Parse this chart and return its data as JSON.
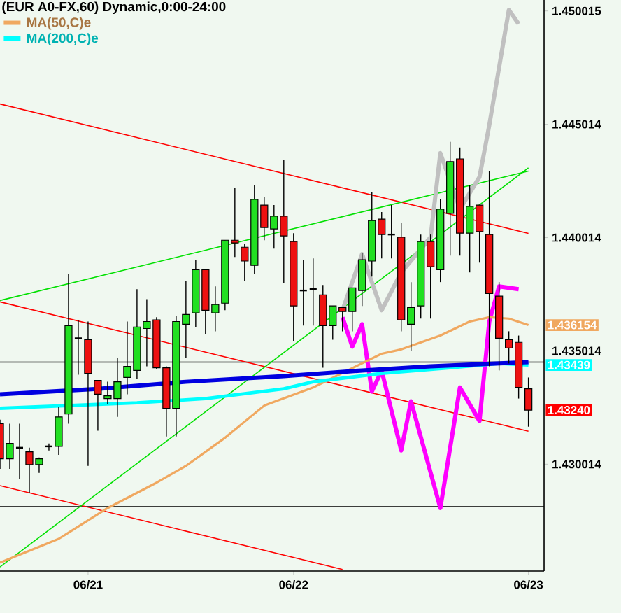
{
  "chart_data": {
    "type": "candlestick",
    "title": "(EUR A0-FX,60) Dynamic,0:00-24:00",
    "categories": [
      null,
      null,
      null,
      null,
      null,
      null,
      null,
      null,
      null,
      "06/21",
      null,
      null,
      null,
      null,
      null,
      null,
      null,
      null,
      null,
      null,
      null,
      null,
      null,
      null,
      null,
      null,
      null,
      null,
      null,
      null,
      "06/22",
      null,
      null,
      null,
      null,
      null,
      null,
      null,
      null,
      null,
      null,
      null,
      null,
      null,
      null,
      null,
      null,
      null,
      null,
      null,
      null,
      null,
      null,
      null,
      "06/23"
    ],
    "ohlc": [
      [
        1.4318,
        1.43198,
        1.42981,
        1.43025
      ],
      [
        1.43025,
        1.4318,
        1.42981,
        1.43093
      ],
      [
        1.43074,
        1.4318,
        1.42938,
        1.43074
      ],
      [
        1.43056,
        1.43074,
        1.42876,
        1.43
      ],
      [
        1.43,
        1.43031,
        1.42963,
        1.43025
      ],
      [
        1.4308,
        1.43093,
        1.43062,
        1.4308
      ],
      [
        1.4308,
        1.43254,
        1.43043,
        1.4321
      ],
      [
        1.43223,
        1.43842,
        1.4318,
        1.43613
      ],
      [
        1.43557,
        1.43638,
        1.43396,
        1.43557
      ],
      [
        1.43551,
        1.43631,
        1.42994,
        1.43402
      ],
      [
        1.43371,
        1.43371,
        1.43149,
        1.4331
      ],
      [
        1.43291,
        1.43365,
        1.43266,
        1.43303
      ],
      [
        1.43291,
        1.4347,
        1.4321,
        1.43365
      ],
      [
        1.43384,
        1.43631,
        1.4331,
        1.43433
      ],
      [
        1.43415,
        1.43774,
        1.43378,
        1.43607
      ],
      [
        1.436,
        1.4373,
        1.43433,
        1.43631
      ],
      [
        1.43638,
        1.4365,
        1.43421,
        1.43427
      ],
      [
        1.43427,
        1.43433,
        1.43124,
        1.43248
      ],
      [
        1.43248,
        1.43656,
        1.43124,
        1.43631
      ],
      [
        1.43619,
        1.43811,
        1.4347,
        1.43662
      ],
      [
        1.43669,
        1.43904,
        1.43607,
        1.4386
      ],
      [
        1.4386,
        1.4386,
        1.43576,
        1.43681
      ],
      [
        1.43669,
        1.43786,
        1.43588,
        1.43706
      ],
      [
        1.43712,
        1.4399,
        1.43681,
        1.4399
      ],
      [
        1.4399,
        1.44219,
        1.43916,
        1.43978
      ],
      [
        1.43959,
        1.43972,
        1.43811,
        1.43898
      ],
      [
        1.43879,
        1.44232,
        1.43842,
        1.4417
      ],
      [
        1.44145,
        1.44182,
        1.4399,
        1.44046
      ],
      [
        1.4404,
        1.44145,
        1.43953,
        1.44096
      ],
      [
        1.44096,
        1.44343,
        1.43799,
        1.44009
      ],
      [
        1.43984,
        1.44021,
        1.43545,
        1.437
      ],
      [
        1.43768,
        1.43904,
        1.43613,
        1.43768
      ],
      [
        1.43774,
        1.4391,
        1.43613,
        1.43774
      ],
      [
        1.43749,
        1.43792,
        1.43427,
        1.43613
      ],
      [
        1.43613,
        1.437,
        1.43551,
        1.437
      ],
      [
        1.43693,
        1.43693,
        1.43588,
        1.43675
      ],
      [
        1.43675,
        1.4378,
        1.43588,
        1.4378
      ],
      [
        1.43768,
        1.43935,
        1.437,
        1.43904
      ],
      [
        1.43898,
        1.44201,
        1.43829,
        1.44077
      ],
      [
        1.44083,
        1.44114,
        1.4391,
        1.44015
      ],
      [
        1.44015,
        1.44145,
        1.4391,
        1.44015
      ],
      [
        1.44003,
        1.44065,
        1.43588,
        1.43638
      ],
      [
        1.43619,
        1.43805,
        1.43501,
        1.43693
      ],
      [
        1.437,
        1.44015,
        1.43644,
        1.43984
      ],
      [
        1.43984,
        1.44015,
        1.43644,
        1.43873
      ],
      [
        1.4386,
        1.4417,
        1.43805,
        1.44127
      ],
      [
        1.44108,
        1.44424,
        1.43922,
        1.44337
      ],
      [
        1.44349,
        1.44399,
        1.43922,
        1.44021
      ],
      [
        1.44021,
        1.44232,
        1.43848,
        1.44139
      ],
      [
        1.44145,
        1.44145,
        1.43891,
        1.44028
      ],
      [
        1.44015,
        1.44294,
        1.43433,
        1.43755
      ],
      [
        1.43743,
        1.43805,
        1.43415,
        1.43557
      ],
      [
        1.43551,
        1.43588,
        1.43446,
        1.43514
      ],
      [
        1.43539,
        1.43569,
        1.43291,
        1.4334
      ],
      [
        1.43334,
        1.43384,
        1.43167,
        1.4324
      ]
    ],
    "ylim": [
      1.4253,
      1.4505
    ],
    "yticks": [
      1.430014,
      1.435014,
      1.440014,
      1.445014,
      1.450015
    ],
    "series": [
      {
        "type": "line",
        "color": "#ff0000",
        "values": [
          1.44591,
          null,
          null,
          null,
          null,
          null,
          null,
          null,
          null,
          null,
          null,
          null,
          null,
          null,
          null,
          null,
          null,
          null,
          null,
          null,
          null,
          null,
          null,
          null,
          null,
          null,
          null,
          null,
          null,
          null,
          null,
          null,
          null,
          null,
          null,
          null,
          null,
          null,
          null,
          null,
          null,
          null,
          null,
          null,
          null,
          null,
          null,
          null,
          null,
          null,
          null,
          null,
          null,
          null,
          1.4402
        ]
      },
      {
        "type": "line",
        "color": "#ff0000",
        "values": [
          1.43718,
          null,
          null,
          null,
          null,
          null,
          null,
          null,
          null,
          null,
          null,
          null,
          null,
          null,
          null,
          null,
          null,
          null,
          null,
          null,
          null,
          null,
          null,
          null,
          null,
          null,
          null,
          null,
          null,
          null,
          null,
          null,
          null,
          null,
          null,
          null,
          null,
          null,
          null,
          null,
          null,
          null,
          null,
          null,
          null,
          null,
          null,
          null,
          null,
          null,
          null,
          null,
          null,
          null,
          1.43147
        ]
      },
      {
        "type": "line",
        "color": "#ff0000",
        "values": [
          1.42907,
          null,
          null,
          null,
          null,
          null,
          null,
          null,
          null,
          null,
          null,
          null,
          null,
          null,
          null,
          null,
          null,
          null,
          null,
          null,
          null,
          null,
          null,
          null,
          null,
          null,
          null,
          null,
          null,
          null,
          null,
          null,
          null,
          null,
          null,
          1.42537,
          null,
          null,
          null,
          null,
          null,
          null,
          null,
          null,
          null,
          null,
          null,
          null,
          null,
          null,
          null,
          null,
          null,
          null,
          null
        ]
      },
      {
        "type": "line",
        "color": "#00e000",
        "values": [
          1.43724,
          null,
          null,
          null,
          null,
          null,
          null,
          null,
          null,
          null,
          null,
          null,
          null,
          null,
          null,
          null,
          null,
          null,
          null,
          null,
          null,
          null,
          null,
          null,
          null,
          null,
          null,
          null,
          null,
          null,
          null,
          null,
          null,
          null,
          null,
          null,
          null,
          null,
          null,
          null,
          null,
          null,
          null,
          null,
          null,
          null,
          null,
          null,
          null,
          null,
          null,
          null,
          null,
          null,
          1.44295
        ]
      },
      {
        "type": "line",
        "color": "#00e000",
        "values": [
          1.42548,
          null,
          null,
          null,
          null,
          null,
          null,
          null,
          null,
          null,
          null,
          null,
          null,
          null,
          null,
          null,
          null,
          null,
          null,
          null,
          null,
          null,
          null,
          null,
          null,
          null,
          null,
          null,
          null,
          null,
          null,
          null,
          null,
          null,
          null,
          null,
          null,
          null,
          null,
          null,
          null,
          null,
          null,
          null,
          null,
          null,
          null,
          null,
          null,
          null,
          null,
          null,
          null,
          null,
          1.44309
        ]
      },
      {
        "type": "line",
        "color": "#c0c0c0",
        "values": [
          null,
          null,
          null,
          null,
          null,
          null,
          null,
          null,
          null,
          null,
          null,
          null,
          null,
          null,
          null,
          null,
          null,
          null,
          null,
          null,
          null,
          null,
          null,
          null,
          null,
          null,
          null,
          null,
          null,
          null,
          null,
          null,
          null,
          null,
          null,
          1.43681,
          null,
          1.43929,
          null,
          1.43681,
          null,
          1.43848,
          null,
          null,
          1.44003,
          1.44374,
          null,
          1.44127,
          null,
          1.44269,
          1.44498,
          null,
          1.45006,
          1.44944,
          null
        ]
      },
      {
        "type": "line",
        "color": "#ff00ff",
        "values": [
          null,
          null,
          null,
          null,
          null,
          null,
          null,
          null,
          null,
          null,
          null,
          null,
          null,
          null,
          null,
          null,
          null,
          null,
          null,
          null,
          null,
          null,
          null,
          null,
          null,
          null,
          null,
          null,
          null,
          null,
          null,
          null,
          null,
          null,
          null,
          1.4365,
          1.4352,
          1.43619,
          1.43322,
          1.43415,
          null,
          1.43062,
          1.43279,
          null,
          null,
          1.42808,
          null,
          1.4334,
          null,
          1.43192,
          1.43631,
          1.43786,
          null,
          1.43774,
          null
        ]
      },
      {
        "type": "line",
        "name": "MA(50,C)e",
        "color": "#f0a860",
        "values": [
          1.42567,
          null,
          null,
          null,
          null,
          null,
          1.42672,
          null,
          null,
          null,
          null,
          1.42808,
          null,
          null,
          null,
          null,
          1.4292,
          null,
          null,
          1.42994,
          null,
          null,
          null,
          1.43118,
          null,
          null,
          null,
          1.4326,
          null,
          null,
          null,
          null,
          1.4334,
          null,
          null,
          null,
          null,
          null,
          null,
          1.43489,
          null,
          1.43508,
          null,
          null,
          null,
          1.43569,
          null,
          null,
          1.43631,
          null,
          1.4365,
          null,
          1.43644,
          null,
          1.436154
        ]
      },
      {
        "type": "line",
        "name": "MA(200,C)e",
        "color": "#00ffff",
        "values": [
          1.43248,
          null,
          null,
          null,
          null,
          null,
          null,
          null,
          null,
          null,
          null,
          null,
          null,
          null,
          1.43272,
          null,
          null,
          null,
          null,
          null,
          null,
          1.43291,
          null,
          null,
          null,
          null,
          null,
          null,
          null,
          1.43334,
          null,
          null,
          1.43365,
          null,
          null,
          null,
          null,
          null,
          null,
          1.43402,
          null,
          null,
          null,
          null,
          null,
          null,
          1.43427,
          null,
          null,
          null,
          null,
          1.43446,
          null,
          null,
          1.43439
        ]
      },
      {
        "type": "line",
        "color": "#0000e0",
        "values": [
          1.4331,
          null,
          null,
          null,
          null,
          null,
          null,
          null,
          null,
          null,
          1.43334,
          null,
          null,
          null,
          null,
          null,
          null,
          null,
          null,
          1.43365,
          null,
          null,
          null,
          null,
          null,
          null,
          null,
          null,
          null,
          1.4339,
          null,
          null,
          null,
          null,
          null,
          null,
          null,
          1.43415,
          null,
          null,
          null,
          null,
          null,
          null,
          1.43433,
          null,
          null,
          null,
          null,
          null,
          null,
          null,
          null,
          null,
          1.43452
        ]
      }
    ],
    "ref_lines": [
      {
        "axis": "y",
        "value": 1.43452,
        "color": "#000000"
      },
      {
        "axis": "y",
        "value": 1.42814,
        "color": "#000000"
      }
    ],
    "annotations": [
      {
        "text": "1.436154",
        "x": "06/23",
        "y": 1.436154
      },
      {
        "text": "1.43439",
        "x": "06/23",
        "y": 1.43439
      },
      {
        "text": "1.43240",
        "x": "06/23",
        "y": 1.4324
      }
    ],
    "legend": "top left"
  }
}
